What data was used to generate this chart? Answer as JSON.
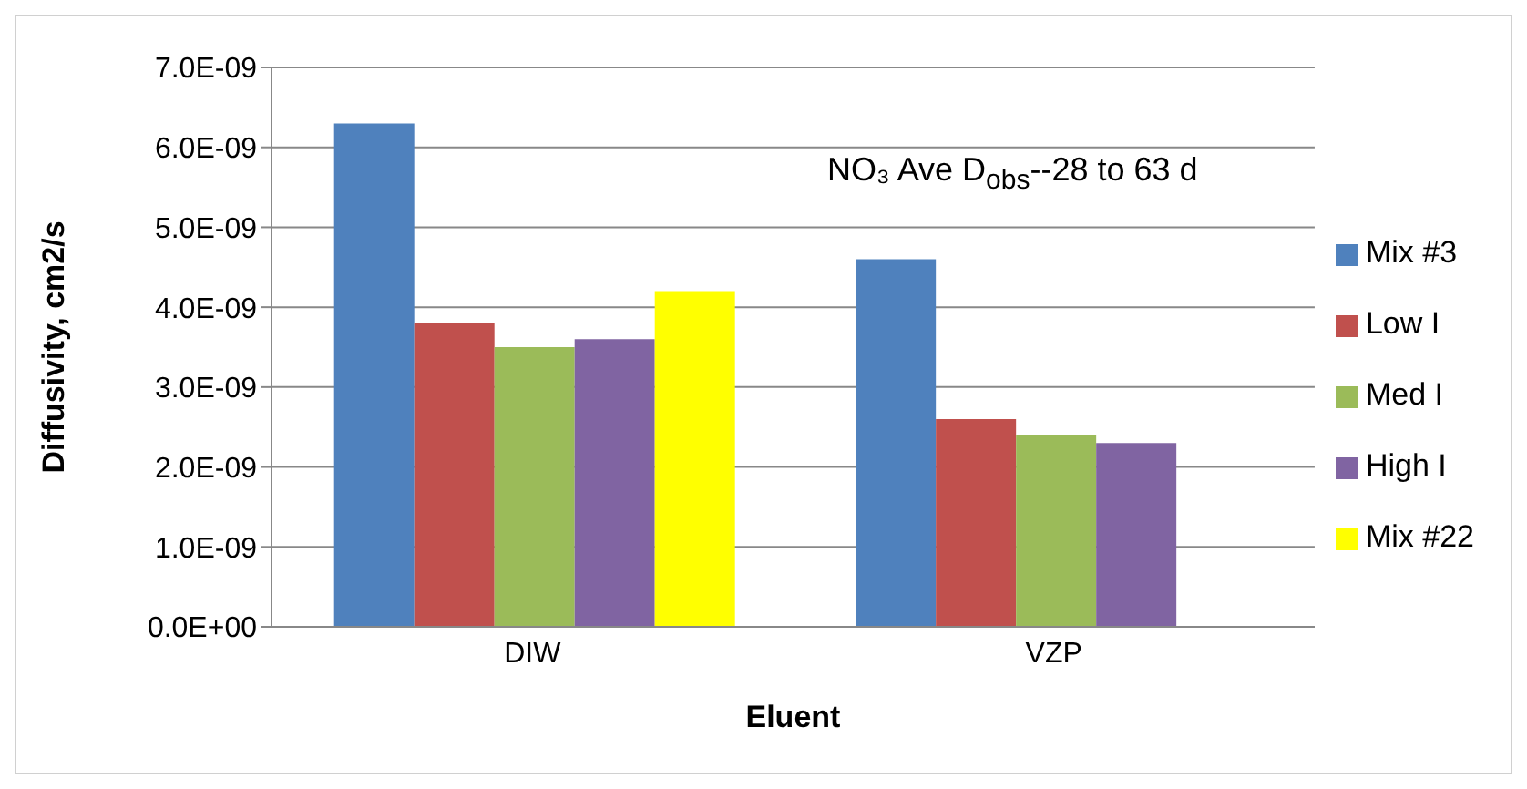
{
  "chart_data": {
    "type": "bar",
    "xlabel": "Eluent",
    "ylabel": "Diffusivity, cm2/s",
    "annotations": [
      "NO₃ Ave D$_{obs}$--28 to 63 d"
    ],
    "categories": [
      "DIW",
      "VZP"
    ],
    "series": [
      {
        "name": "Mix #3",
        "color": "#4f81bd",
        "values": [
          6.3e-09,
          4.6e-09
        ]
      },
      {
        "name": "Low I",
        "color": "#c0504d",
        "values": [
          3.8e-09,
          2.6e-09
        ]
      },
      {
        "name": "Med I",
        "color": "#9bbb59",
        "values": [
          3.5e-09,
          2.4e-09
        ]
      },
      {
        "name": "High I",
        "color": "#8064a2",
        "values": [
          3.6e-09,
          2.3e-09
        ]
      },
      {
        "name": "Mix #22",
        "color": "#ffff00",
        "values": [
          4.2e-09,
          null
        ]
      }
    ],
    "ylim": [
      0,
      7e-09
    ],
    "yticks": [
      {
        "value": 0,
        "label": "0.0E+00"
      },
      {
        "value": 1e-09,
        "label": "1.0E-09"
      },
      {
        "value": 2e-09,
        "label": "2.0E-09"
      },
      {
        "value": 3e-09,
        "label": "3.0E-09"
      },
      {
        "value": 4e-09,
        "label": "4.0E-09"
      },
      {
        "value": 5e-09,
        "label": "5.0E-09"
      },
      {
        "value": 6e-09,
        "label": "6.0E-09"
      },
      {
        "value": 7e-09,
        "label": "7.0E-09"
      }
    ],
    "grid": "y",
    "legend": "right"
  }
}
